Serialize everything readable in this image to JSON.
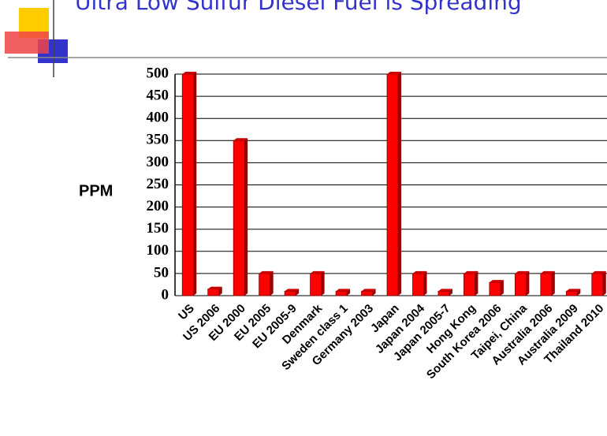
{
  "chart_data": {
    "type": "bar",
    "title": "Ultra Low Sulfur Diesel Fuel is Spreading",
    "y_label": "PPM",
    "categories": [
      "US",
      "US 2006",
      "EU 2000",
      "EU 2005",
      "EU 2005-9",
      "Denmark",
      "Sweden class 1",
      "Germany 2003",
      "Japan",
      "Japan 2004",
      "Japan 2005-7",
      "Hong Kong",
      "South Korea 2006",
      "Taipei, China",
      "Australia 2006",
      "Australia 2009",
      "Thailand 2010"
    ],
    "values": [
      500,
      15,
      350,
      50,
      10,
      50,
      10,
      10,
      500,
      50,
      10,
      50,
      30,
      50,
      50,
      10,
      50
    ],
    "color": "#ff0000",
    "ylim": [
      0,
      500
    ],
    "yticks": [
      0,
      50,
      100,
      150,
      200,
      250,
      300,
      350,
      400,
      450,
      500
    ],
    "grid": true
  }
}
